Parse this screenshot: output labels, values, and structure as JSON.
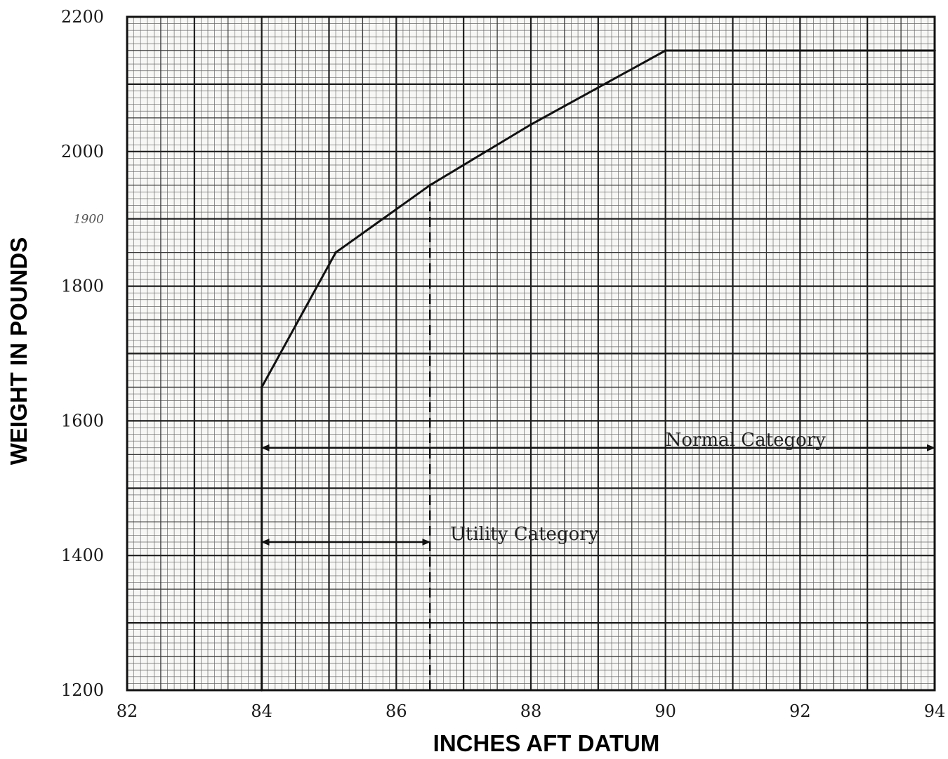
{
  "chart_data": {
    "type": "line",
    "title": "",
    "xlabel": "INCHES AFT DATUM",
    "ylabel": "WEIGHT IN POUNDS",
    "xlim": [
      82,
      94
    ],
    "ylim": [
      1200,
      2200
    ],
    "grid": true,
    "x_ticks": [
      {
        "value": 82,
        "label": "82"
      },
      {
        "value": 84,
        "label": "84"
      },
      {
        "value": 86,
        "label": "86"
      },
      {
        "value": 88,
        "label": "88"
      },
      {
        "value": 90,
        "label": "90"
      },
      {
        "value": 92,
        "label": "92"
      },
      {
        "value": 94,
        "label": "94"
      }
    ],
    "y_ticks": [
      {
        "value": 1200,
        "label": "1200"
      },
      {
        "value": 1400,
        "label": "1400"
      },
      {
        "value": 1600,
        "label": "1600"
      },
      {
        "value": 1800,
        "label": "1800"
      },
      {
        "value": 1900,
        "label": "1900",
        "style": "handwritten"
      },
      {
        "value": 2000,
        "label": "2000"
      },
      {
        "value": 2200,
        "label": "2200"
      }
    ],
    "series": [
      {
        "x": [
          84.0,
          84.0,
          85.1,
          86.5,
          88.0,
          90.0,
          94.0
        ],
        "y": [
          1200,
          1650,
          1850,
          1950,
          2040,
          2150,
          2150
        ]
      }
    ],
    "reference_lines": [
      {
        "axis": "x",
        "value": 86.5,
        "style": "dashed",
        "y_range": [
          1200,
          1950
        ]
      }
    ],
    "annotations": [
      {
        "text": "Normal Category",
        "arrow_x_range": [
          84.0,
          94.0
        ],
        "y": 1560,
        "text_x": 90.0
      },
      {
        "text": "Utility Category",
        "arrow_x_range": [
          84.0,
          86.5
        ],
        "y": 1420,
        "text_x": 86.8
      }
    ]
  }
}
